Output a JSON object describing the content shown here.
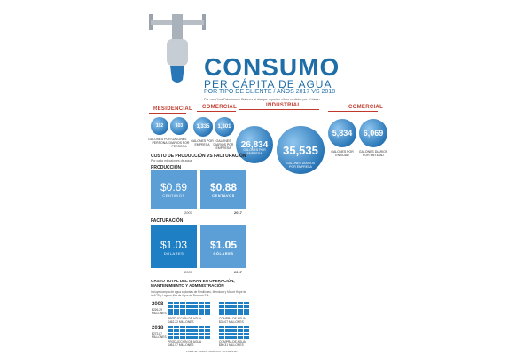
{
  "header": {
    "title": "CONSUMO",
    "subtitle": "PER CÁPITA DE AGUA",
    "subtitle2": "POR TIPO DE CLIENTE / AÑOS 2017 VS 2018",
    "note": "Por mes/ Los Fabulosos / Galones al día que reportan cifras medidos por el Idaan"
  },
  "segments": [
    {
      "label": "RESIDENCIAL"
    },
    {
      "label": "COMERCIAL"
    },
    {
      "label": "INDUSTRIAL"
    },
    {
      "label": "COMERCIAL"
    }
  ],
  "bubbles": [
    {
      "value": "102",
      "caption": "GALONES POR PERSONA"
    },
    {
      "value": "103",
      "caption": "GALONES DIARIOS POR PERSONA"
    },
    {
      "value": "1,335",
      "caption": "GALONES POR EMPRESA"
    },
    {
      "value": "1,301",
      "caption": "GALONES DIARIOS POR EMPRESA"
    },
    {
      "value": "26,834",
      "caption": "GALONES POR EMPRESA"
    },
    {
      "value": "35,535",
      "caption": "GALONES DIARIOS POR EMPRESA"
    },
    {
      "value": "5,834",
      "caption": "GALONES POR ENTIDAD"
    },
    {
      "value": "6,069",
      "caption": "GALONES DIARIOS POR ENTIDAD"
    }
  ],
  "costs": {
    "title_prefix": "COSTO DE ",
    "title_bold": "PRODUCCIÓN VS FACTURACIÓN",
    "title_note": "Por cada mil galones de agua",
    "produccion_label": "PRODUCCIÓN",
    "facturacion_label": "FACTURACIÓN",
    "produccion": [
      {
        "value": "$0.69",
        "unit": "CENTAVOS",
        "year": "2007"
      },
      {
        "value": "$0.88",
        "unit": "CENTAVOS",
        "year": "2017"
      }
    ],
    "facturacion": [
      {
        "value": "$1.03",
        "unit": "DÓLARES",
        "year": "2007"
      },
      {
        "value": "$1.05",
        "unit": "DÓLARES",
        "year": "2017"
      }
    ]
  },
  "gasto": {
    "title": "GASTO TOTAL DEL IDAAN EN OPERACIÓN, MANTENIMIENTO Y ADMINISTRACIÓN",
    "note": "Incluye compra de agua a plantas de Pindilones, Mendoza y Mount Hope de la ACP y Laguna Alta de Agua de Panamá S.A.",
    "rows": [
      {
        "year": "2008",
        "total": "$226.29 MILLONES",
        "p_label": "PRODUCCIÓN DE AGUA $462.22 MILLONES",
        "c_label": "COMPRA DE AGUA $33.07 MILLONES"
      },
      {
        "year": "2018",
        "total": "$273.87 MILLONES",
        "p_label": "PRODUCCIÓN DE AGUA $461.57 MILLONES",
        "c_label": "COMPRA DE AGUA $50.31 MILLONES"
      }
    ]
  },
  "footer": {
    "text": "FUENTE: IDAAN / GRÁFICO: LA PRENSA"
  },
  "chart_data": {
    "type": "bar",
    "categories": [
      "RESIDENCIAL",
      "RESIDENCIAL",
      "COMERCIAL",
      "COMERCIAL",
      "INDUSTRIAL",
      "INDUSTRIAL",
      "COMERCIAL",
      "COMERCIAL"
    ],
    "values": [
      102,
      103,
      1335,
      1301,
      26834,
      35535,
      5834,
      6069
    ],
    "title": "CONSUMO PER CÁPITA DE AGUA"
  },
  "colors": {
    "accent": "#1f6ea8",
    "red": "#c0392b",
    "box_light": "#5b9fd6",
    "box_dark": "#1f7fc4"
  }
}
